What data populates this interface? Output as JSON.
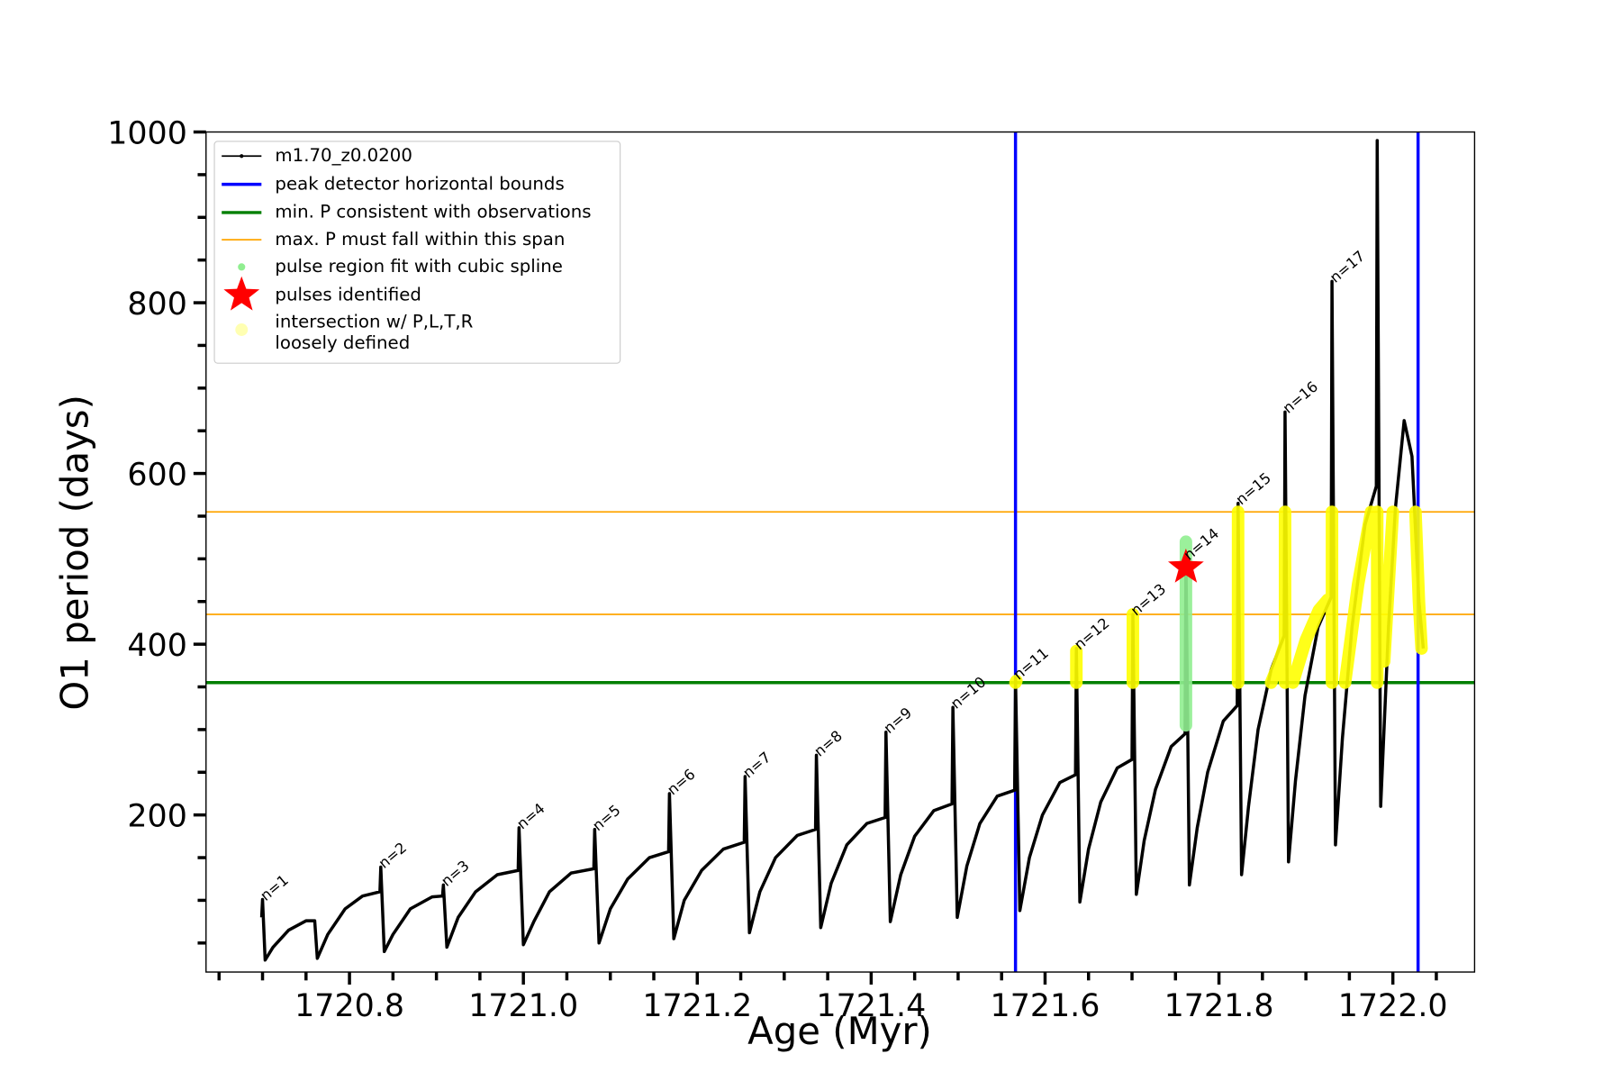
{
  "chart_data": {
    "type": "line",
    "xlabel": "Age (Myr)",
    "ylabel": "O1 period (days)",
    "xlim": [
      1720.635,
      1722.094
    ],
    "ylim": [
      16,
      1000
    ],
    "xticks": [
      1720.8,
      {
        "value": 1721.0,
        "label": "1721.0"
      },
      1721.2,
      1721.4,
      1721.6,
      1721.8,
      {
        "value": 1722.0,
        "label": "1722.0"
      }
    ],
    "xticks_minor": [
      1720.65,
      1720.7,
      1720.75,
      1720.85,
      1720.9,
      1720.95,
      1721.05,
      1721.1,
      1721.15,
      1721.25,
      1721.3,
      1721.35,
      1721.45,
      1721.5,
      1721.55,
      1721.65,
      1721.7,
      1721.75,
      1721.85,
      1721.9,
      1721.95,
      1722.05
    ],
    "yticks": [
      200,
      400,
      600,
      800,
      1000
    ],
    "yticks_minor": [
      50,
      100,
      150,
      250,
      300,
      350,
      450,
      500,
      550,
      650,
      700,
      750,
      850,
      900,
      950
    ],
    "legend": "upper left",
    "series": [
      {
        "name": "m1.70_z0.0200",
        "kind": "line",
        "color": "#000000",
        "x": [
          1720.699,
          1720.7,
          1720.703,
          1720.712,
          1720.73,
          1720.75,
          1720.76,
          1720.763,
          1720.775,
          1720.795,
          1720.815,
          1720.835,
          1720.836,
          1720.84,
          1720.85,
          1720.87,
          1720.895,
          1720.907,
          1720.908,
          1720.912,
          1720.925,
          1720.945,
          1720.97,
          1720.994,
          1720.995,
          1721.0,
          1721.012,
          1721.03,
          1721.055,
          1721.081,
          1721.082,
          1721.087,
          1721.1,
          1721.12,
          1721.145,
          1721.167,
          1721.168,
          1721.173,
          1721.185,
          1721.205,
          1721.23,
          1721.254,
          1721.255,
          1721.26,
          1721.272,
          1721.29,
          1721.315,
          1721.336,
          1721.337,
          1721.342,
          1721.354,
          1721.372,
          1721.395,
          1721.416,
          1721.417,
          1721.422,
          1721.434,
          1721.45,
          1721.472,
          1721.493,
          1721.494,
          1721.499,
          1721.51,
          1721.525,
          1721.545,
          1721.565,
          1721.566,
          1721.571,
          1721.582,
          1721.597,
          1721.617,
          1721.635,
          1721.636,
          1721.64,
          1721.65,
          1721.664,
          1721.683,
          1721.7,
          1721.701,
          1721.705,
          1721.714,
          1721.727,
          1721.745,
          1721.761,
          1721.762,
          1721.766,
          1721.775,
          1721.787,
          1721.805,
          1721.821,
          1721.822,
          1721.826,
          1721.834,
          1721.845,
          1721.86,
          1721.875,
          1721.876,
          1721.88,
          1721.888,
          1721.899,
          1721.914,
          1721.929,
          1721.93,
          1721.934,
          1721.942,
          1721.953,
          1721.968,
          1721.981,
          1721.982,
          1721.986,
          1721.995,
          1722.003,
          1722.013,
          1722.022,
          1722.03,
          1722.035
        ],
        "values": [
          80,
          101,
          30,
          45,
          65,
          76,
          76,
          32,
          60,
          90,
          105,
          110,
          139,
          40,
          60,
          90,
          104,
          105,
          118,
          45,
          80,
          110,
          130,
          135,
          185,
          48,
          75,
          110,
          132,
          137,
          183,
          50,
          90,
          125,
          150,
          157,
          225,
          55,
          100,
          135,
          160,
          168,
          245,
          62,
          110,
          150,
          176,
          183,
          270,
          68,
          120,
          165,
          190,
          197,
          297,
          75,
          130,
          175,
          205,
          213,
          326,
          80,
          140,
          190,
          222,
          229,
          360,
          88,
          150,
          200,
          238,
          247,
          395,
          98,
          160,
          215,
          255,
          265,
          435,
          107,
          170,
          230,
          280,
          295,
          500,
          118,
          185,
          250,
          310,
          328,
          565,
          130,
          210,
          300,
          370,
          410,
          672,
          145,
          240,
          340,
          420,
          455,
          825,
          165,
          290,
          420,
          540,
          585,
          990,
          210,
          420,
          560,
          662,
          620,
          450,
          395
        ]
      },
      {
        "name": "peak detector horizontal bounds",
        "kind": "vline",
        "color": "#0000ff",
        "vlines": [
          1721.566,
          1722.029
        ]
      },
      {
        "name": "min. P consistent with observations",
        "kind": "hline",
        "color": "#007f00",
        "hlines": [
          355
        ]
      },
      {
        "name": "max. P must fall within this span",
        "kind": "hline",
        "color": "#ffa500",
        "hlines": [
          435,
          555
        ]
      },
      {
        "name": "pulse region fit with cubic spline",
        "kind": "segments",
        "color": "#90ee90",
        "x": [
          1721.762,
          1721.762
        ],
        "values": [
          305,
          520
        ]
      },
      {
        "name": "pulses identified",
        "kind": "star",
        "color": "#ff0000",
        "x": [
          1721.762
        ],
        "values": [
          490
        ]
      },
      {
        "name": "intersection w/ P,L,T,R\nloosely defined",
        "kind": "segments",
        "color": "#ffff00",
        "x": [
          1721.566,
          1721.567,
          null,
          1721.636,
          1721.636,
          null,
          1721.701,
          1721.701,
          null,
          1721.822,
          1721.822,
          null,
          1721.86,
          1721.868,
          1721.876,
          null,
          1721.876,
          1721.876,
          null,
          1721.885,
          1721.9,
          1721.915,
          1721.925,
          null,
          1721.93,
          1721.93,
          null,
          1721.945,
          1721.96,
          1721.975,
          null,
          1721.982,
          1721.982,
          null,
          1721.99,
          1722.0,
          null,
          1722.026,
          1722.03,
          1722.033
        ],
        "values": [
          355,
          357,
          null,
          355,
          392,
          null,
          355,
          435,
          null,
          355,
          555,
          null,
          355,
          375,
          400,
          null,
          355,
          555,
          null,
          355,
          405,
          440,
          452,
          null,
          355,
          555,
          null,
          355,
          470,
          555,
          null,
          355,
          555,
          null,
          380,
          555,
          null,
          555,
          450,
          395
        ]
      }
    ],
    "annotations": [
      {
        "text": "n=1",
        "x": 1720.7,
        "y": 101
      },
      {
        "text": "n=2",
        "x": 1720.836,
        "y": 139
      },
      {
        "text": "n=3",
        "x": 1720.908,
        "y": 118
      },
      {
        "text": "n=4",
        "x": 1720.995,
        "y": 185
      },
      {
        "text": "n=5",
        "x": 1721.082,
        "y": 183
      },
      {
        "text": "n=6",
        "x": 1721.168,
        "y": 225
      },
      {
        "text": "n=7",
        "x": 1721.255,
        "y": 245
      },
      {
        "text": "n=8",
        "x": 1721.337,
        "y": 270
      },
      {
        "text": "n=9",
        "x": 1721.417,
        "y": 297
      },
      {
        "text": "n=10",
        "x": 1721.494,
        "y": 326
      },
      {
        "text": "n=11",
        "x": 1721.566,
        "y": 360
      },
      {
        "text": "n=12",
        "x": 1721.636,
        "y": 395
      },
      {
        "text": "n=13",
        "x": 1721.701,
        "y": 435
      },
      {
        "text": "n=14",
        "x": 1721.762,
        "y": 500
      },
      {
        "text": "n=15",
        "x": 1721.822,
        "y": 565
      },
      {
        "text": "n=16",
        "x": 1721.876,
        "y": 672
      },
      {
        "text": "n=17",
        "x": 1721.93,
        "y": 825
      }
    ]
  }
}
